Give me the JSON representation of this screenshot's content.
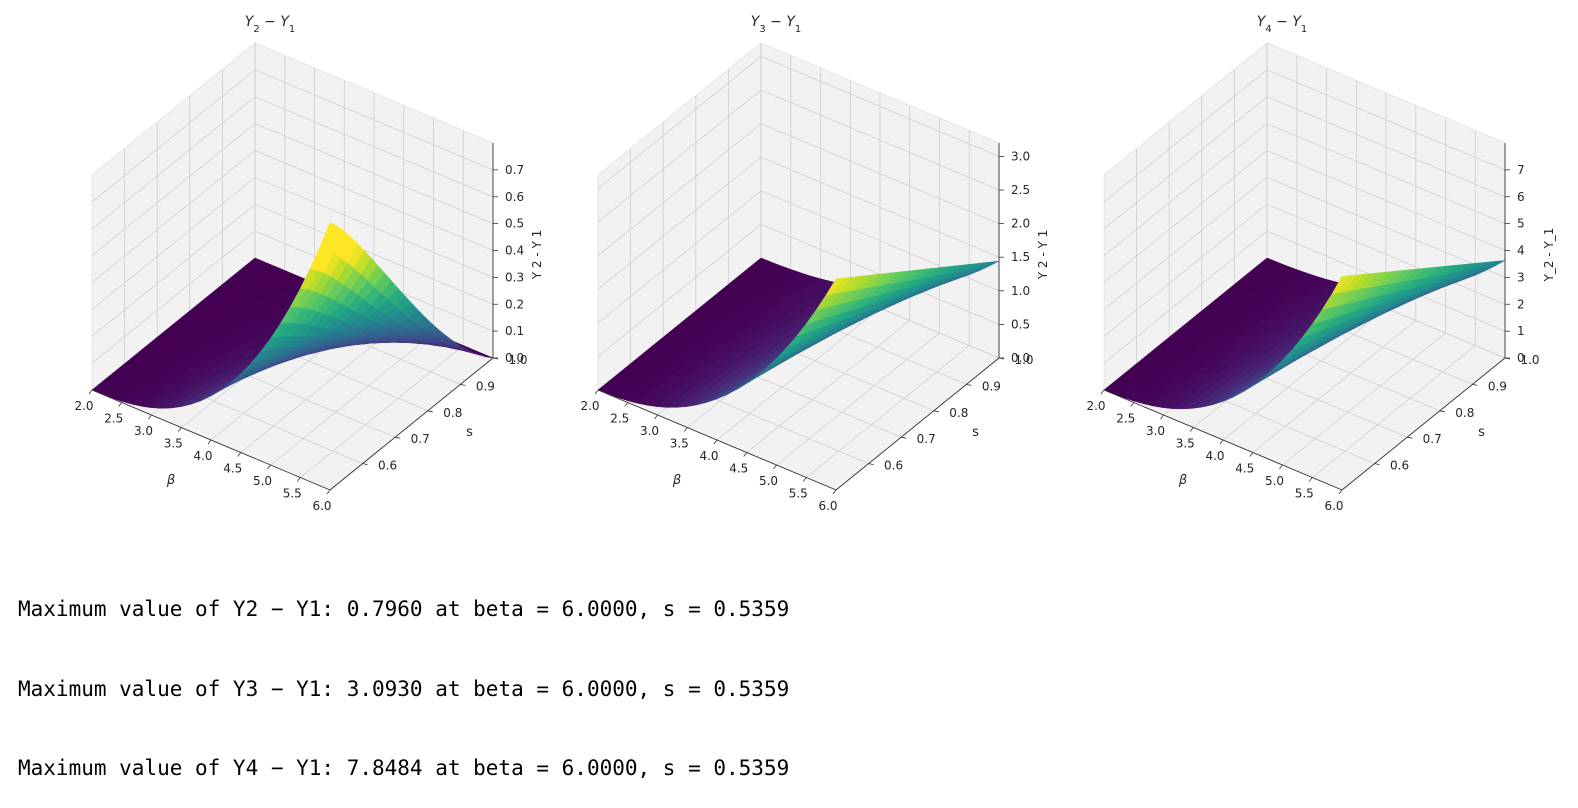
{
  "chart_data": [
    {
      "type": "surface",
      "title": "Y_2 − Y_1",
      "xlabel": "β",
      "ylabel": "s",
      "zlabel": "Y 2 - Y 1",
      "x_ticks": [
        "2.0",
        "2.5",
        "3.0",
        "3.5",
        "4.0",
        "4.5",
        "5.0",
        "5.5",
        "6.0"
      ],
      "y_ticks": [
        "0.6",
        "0.7",
        "0.8",
        "0.9",
        "1.0"
      ],
      "z_ticks": [
        "0.0",
        "0.1",
        "0.2",
        "0.3",
        "0.4",
        "0.5",
        "0.6",
        "0.7"
      ],
      "xlim": [
        2.0,
        6.0
      ],
      "ylim": [
        0.5,
        1.0
      ],
      "zlim": [
        0.0,
        0.8
      ],
      "colormap": "viridis",
      "max_value": 0.796,
      "max_at": {
        "beta": 6.0,
        "s": 0.5359
      }
    },
    {
      "type": "surface",
      "title": "Y_3 − Y_1",
      "xlabel": "β",
      "ylabel": "s",
      "zlabel": "Y 2 - Y 1",
      "x_ticks": [
        "2.0",
        "2.5",
        "3.0",
        "3.5",
        "4.0",
        "4.5",
        "5.0",
        "5.5",
        "6.0"
      ],
      "y_ticks": [
        "0.6",
        "0.7",
        "0.8",
        "0.9",
        "1.0"
      ],
      "z_ticks": [
        "0.0",
        "0.5",
        "1.0",
        "1.5",
        "2.0",
        "2.5",
        "3.0"
      ],
      "xlim": [
        2.0,
        6.0
      ],
      "ylim": [
        0.5,
        1.0
      ],
      "zlim": [
        0.0,
        3.2
      ],
      "colormap": "viridis",
      "max_value": 3.093,
      "max_at": {
        "beta": 6.0,
        "s": 0.5359
      }
    },
    {
      "type": "surface",
      "title": "Y_4 − Y_1",
      "xlabel": "β",
      "ylabel": "s",
      "zlabel": "Y_2 - Y_1",
      "x_ticks": [
        "2.0",
        "2.5",
        "3.0",
        "3.5",
        "4.0",
        "4.5",
        "5.0",
        "5.5",
        "6.0"
      ],
      "y_ticks": [
        "0.6",
        "0.7",
        "0.8",
        "0.9",
        "1.0"
      ],
      "z_ticks": [
        "0",
        "1",
        "2",
        "3",
        "4",
        "5",
        "6",
        "7"
      ],
      "xlim": [
        2.0,
        6.0
      ],
      "ylim": [
        0.5,
        1.0
      ],
      "zlim": [
        0.0,
        8.0
      ],
      "colormap": "viridis",
      "max_value": 7.8484,
      "max_at": {
        "beta": 6.0,
        "s": 0.5359
      }
    }
  ],
  "output_lines": [
    "Maximum value of Y2 − Y1: 0.7960 at beta = 6.0000, s = 0.5359",
    "Maximum value of Y3 − Y1: 3.0930 at beta = 6.0000, s = 0.5359",
    "Maximum value of Y4 − Y1: 7.8484 at beta = 6.0000, s = 0.5359"
  ]
}
